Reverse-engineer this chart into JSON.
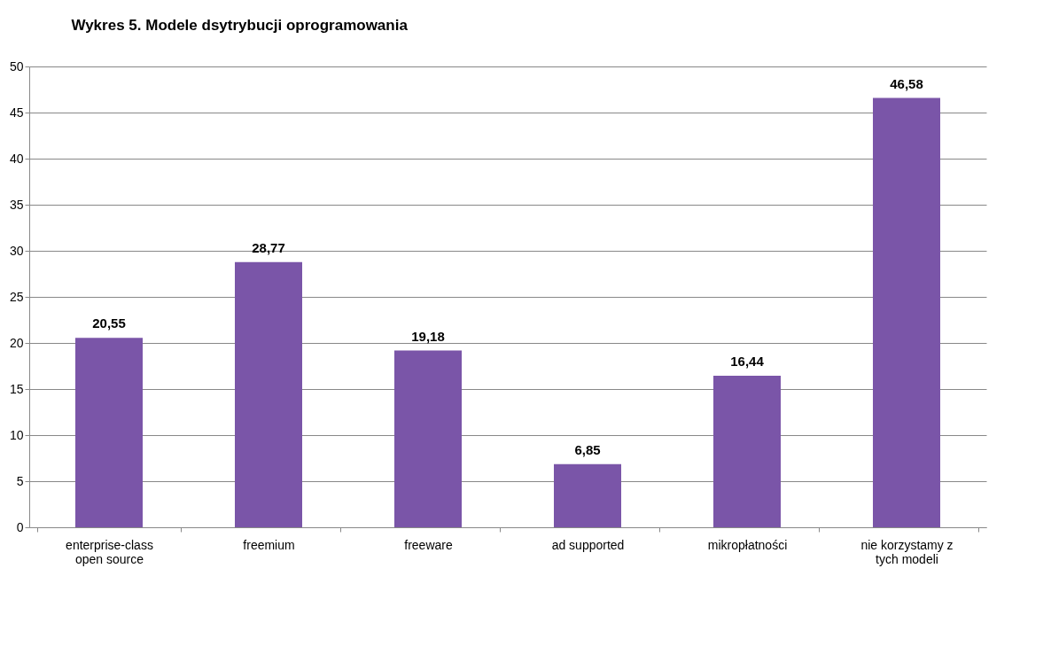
{
  "chart_data": {
    "type": "bar",
    "title": "Wykres 5. Modele dsytrybucji oprogramowania",
    "categories": [
      "enterprise-class open source",
      "freemium",
      "freeware",
      "ad supported",
      "mikropłatności",
      "nie korzystamy z tych modeli"
    ],
    "values": [
      20.55,
      28.77,
      19.18,
      6.85,
      16.44,
      46.58
    ],
    "value_labels": [
      "20,55",
      "28,77",
      "19,18",
      "6,85",
      "16,44",
      "46,58"
    ],
    "color": "#7a55a8",
    "ylim": [
      0,
      50
    ],
    "yticks": [
      0,
      5,
      10,
      15,
      20,
      25,
      30,
      35,
      40,
      45,
      50
    ],
    "grid": "y"
  }
}
